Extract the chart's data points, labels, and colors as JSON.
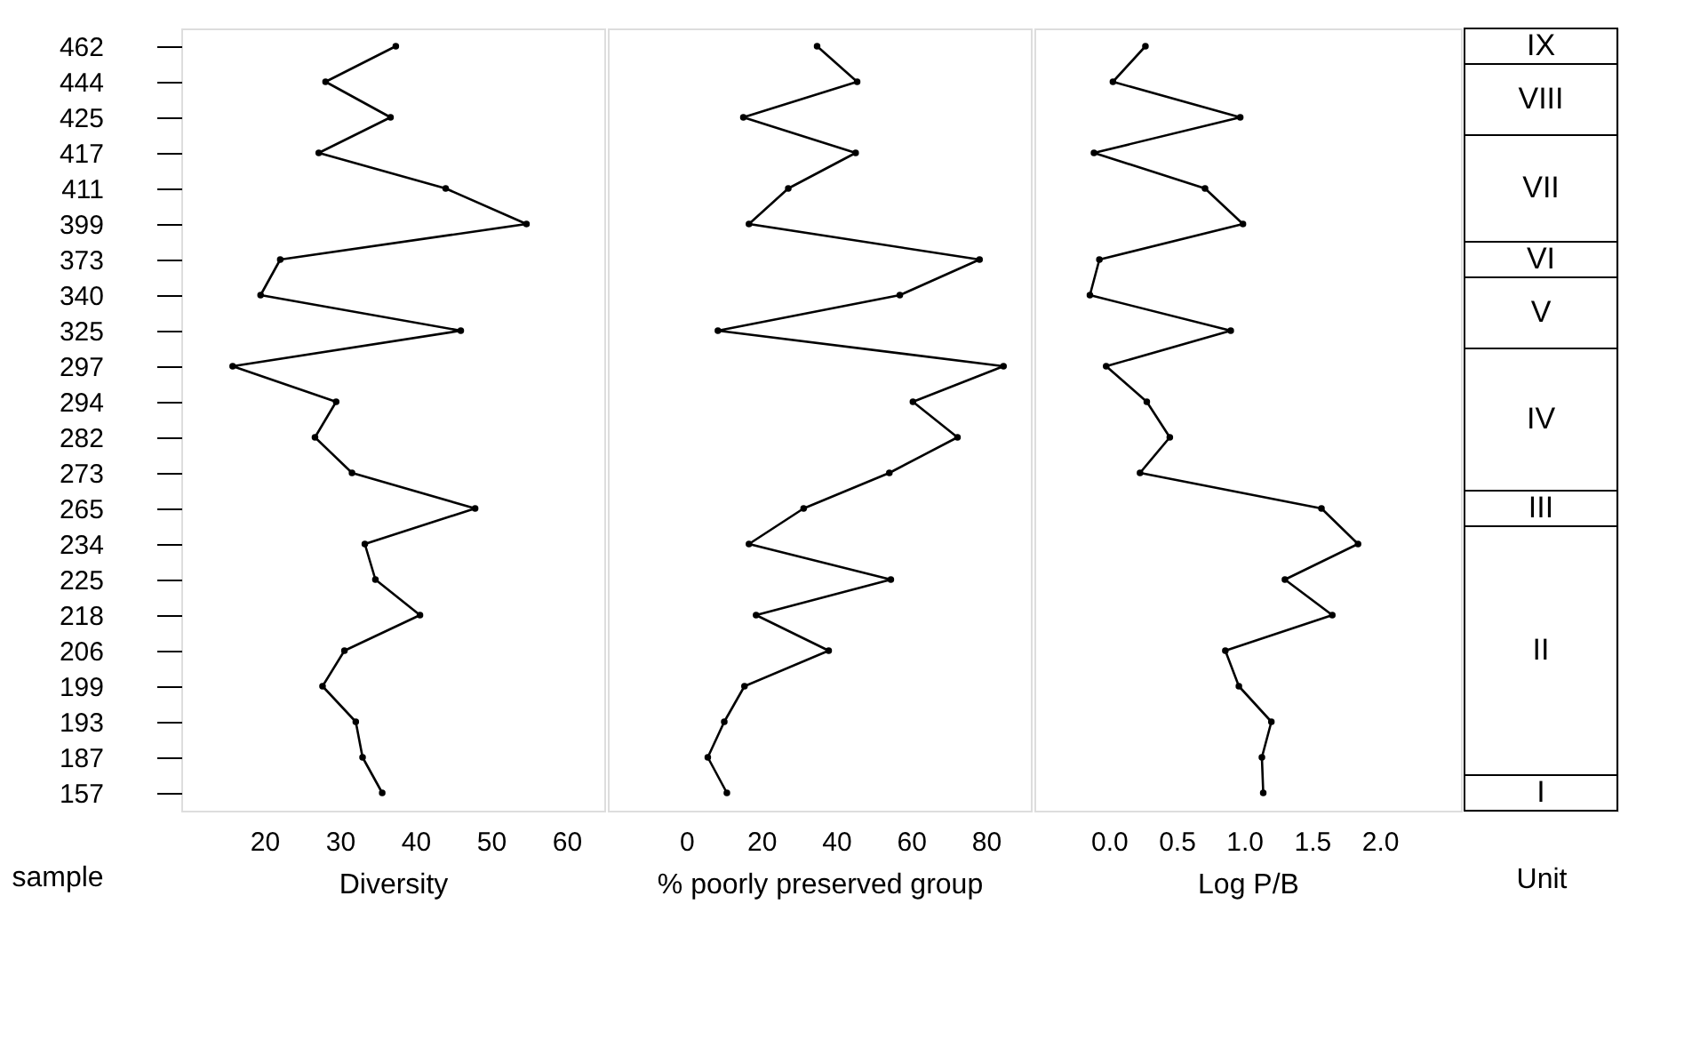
{
  "chart_data": [
    {
      "type": "line",
      "xlabel": "Diversity",
      "ylabel": "sample",
      "categories": [
        "462",
        "444",
        "425",
        "417",
        "411",
        "399",
        "373",
        "340",
        "325",
        "297",
        "294",
        "282",
        "273",
        "265",
        "234",
        "225",
        "218",
        "206",
        "199",
        "193",
        "187",
        "157"
      ],
      "orientation": "horizontal",
      "marker": "circle",
      "line_style": "solid",
      "grid": false,
      "series": [
        {
          "color": "#000000",
          "values": [
            37.4,
            28.1,
            36.7,
            27.2,
            44,
            54.7,
            22.1,
            19.5,
            46,
            15.8,
            29.5,
            26.7,
            31.6,
            47.9,
            33.3,
            34.7,
            40.6,
            30.6,
            27.7,
            32.1,
            33,
            35.6
          ]
        }
      ],
      "xlim": [
        9,
        65
      ],
      "xticks": [
        20,
        30,
        40,
        50,
        60
      ]
    },
    {
      "type": "line",
      "xlabel": "% poorly preserved group",
      "categories": [
        "462",
        "444",
        "425",
        "417",
        "411",
        "399",
        "373",
        "340",
        "325",
        "297",
        "294",
        "282",
        "273",
        "265",
        "234",
        "225",
        "218",
        "206",
        "199",
        "193",
        "187",
        "157"
      ],
      "orientation": "horizontal",
      "marker": "circle",
      "line_style": "solid",
      "grid": false,
      "tick_labels": "x",
      "series": [
        {
          "color": "#000000",
          "values": [
            34.9,
            45.6,
            15.2,
            45.2,
            27.2,
            16.7,
            78.3,
            57,
            8.4,
            84.7,
            60.5,
            72.4,
            54.2,
            31.3,
            16.7,
            54.6,
            18.6,
            38,
            15.5,
            10.1,
            5.7,
            10.8
          ]
        }
      ],
      "xlim": [
        -21,
        92
      ],
      "xticks": [
        0,
        20,
        40,
        60,
        80
      ]
    },
    {
      "type": "line",
      "xlabel": "Log P/B",
      "categories": [
        "462",
        "444",
        "425",
        "417",
        "411",
        "399",
        "373",
        "340",
        "325",
        "297",
        "294",
        "282",
        "273",
        "265",
        "234",
        "225",
        "218",
        "206",
        "199",
        "193",
        "187",
        "157"
      ],
      "orientation": "horizontal",
      "marker": "circle",
      "line_style": "solid",
      "grid": false,
      "tick_labels": "x",
      "series": [
        {
          "color": "#000000",
          "values": [
            0.27,
            0.03,
            0.97,
            -0.11,
            0.71,
            0.99,
            -0.07,
            -0.14,
            0.9,
            -0.02,
            0.28,
            0.45,
            0.23,
            1.57,
            1.84,
            1.3,
            1.65,
            0.86,
            0.96,
            1.2,
            1.13,
            1.14
          ]
        }
      ],
      "xlim": [
        -0.55,
        2.6
      ],
      "xticks": [
        {
          "value": 0,
          "label": "0.0"
        },
        {
          "value": 0.5,
          "label": "0.5"
        },
        {
          "value": 1,
          "label": "1.0"
        },
        {
          "value": 1.5,
          "label": "1.5"
        },
        {
          "value": 2,
          "label": "2.0"
        }
      ]
    },
    {
      "type": "other",
      "xlabel": "Unit",
      "annotations": [
        {
          "text": "IX",
          "y": "462"
        },
        {
          "text": "VIII",
          "y": "444"
        },
        {
          "text": "VII",
          "y": "417"
        },
        {
          "text": "VI",
          "y": "373"
        },
        {
          "text": "V",
          "y": "340"
        },
        {
          "text": "IV",
          "y": "297"
        },
        {
          "text": "III",
          "y": "265"
        },
        {
          "text": "II",
          "y": "234"
        },
        {
          "text": "I",
          "y": "157"
        }
      ]
    }
  ]
}
